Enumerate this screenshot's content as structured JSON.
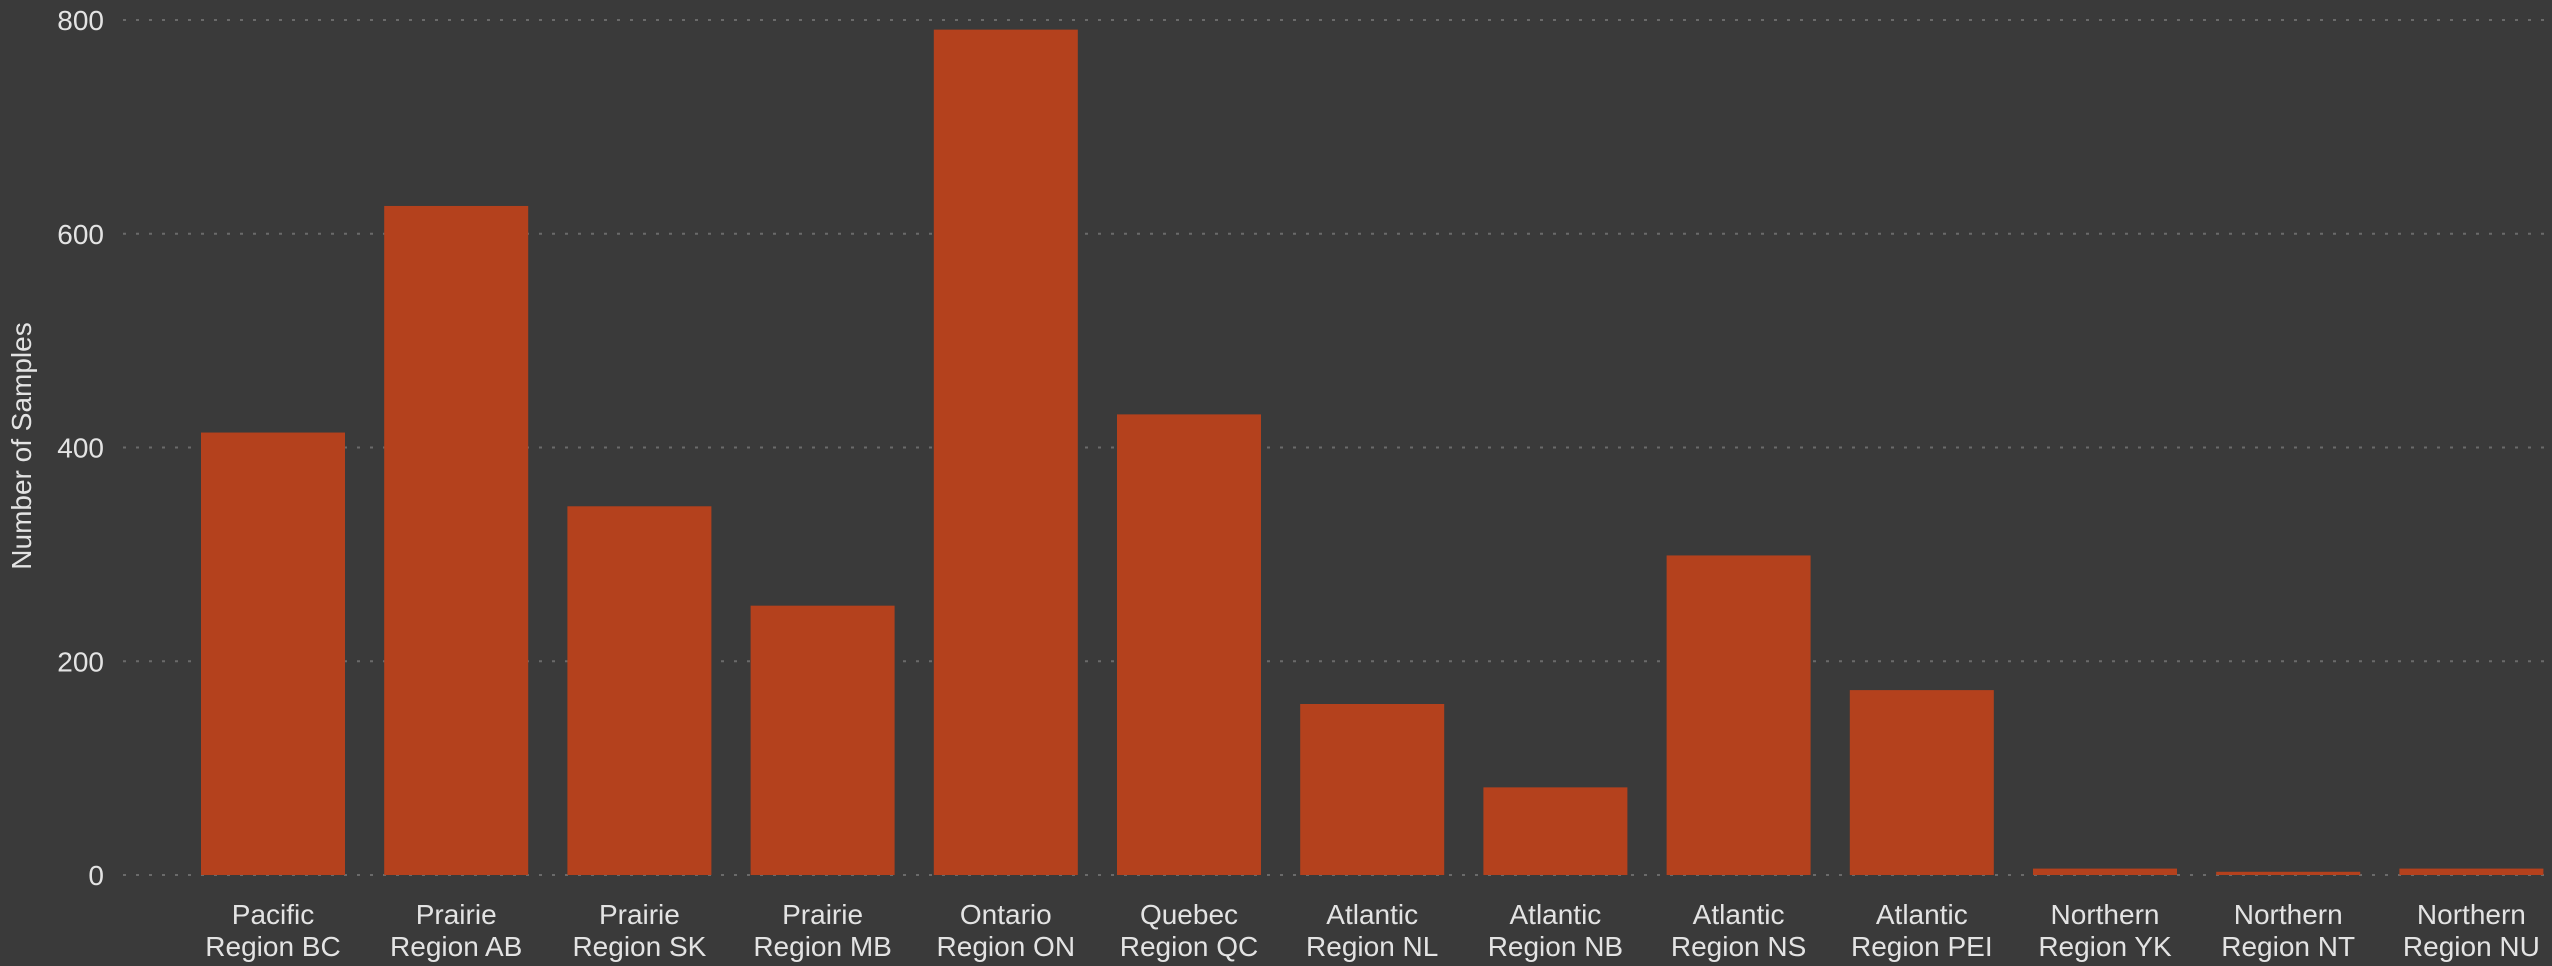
{
  "chart_data": {
    "type": "bar",
    "title": "",
    "xlabel": "",
    "ylabel": "Number of Samples",
    "ylim": [
      0,
      800
    ],
    "yticks": [
      0,
      200,
      400,
      600,
      800
    ],
    "grid": true,
    "legend": "none",
    "colors": {
      "background": "#3a3a3a",
      "bar": "#b4411d",
      "grid": "#6a6a6a",
      "text": "#e3e3e3"
    },
    "categories": [
      [
        "Pacific",
        "Region BC"
      ],
      [
        "Prairie",
        "Region AB"
      ],
      [
        "Prairie",
        "Region SK"
      ],
      [
        "Prairie",
        "Region MB"
      ],
      [
        "Ontario",
        "Region ON"
      ],
      [
        "Quebec",
        "Region QC"
      ],
      [
        "Atlantic",
        "Region NL"
      ],
      [
        "Atlantic",
        "Region NB"
      ],
      [
        "Atlantic",
        "Region NS"
      ],
      [
        "Atlantic",
        "Region PEI"
      ],
      [
        "Northern",
        "Region YK"
      ],
      [
        "Northern",
        "Region NT"
      ],
      [
        "Northern",
        "Region NU"
      ]
    ],
    "values": [
      414,
      626,
      345,
      252,
      791,
      431,
      160,
      82,
      299,
      173,
      6,
      3,
      6
    ]
  }
}
